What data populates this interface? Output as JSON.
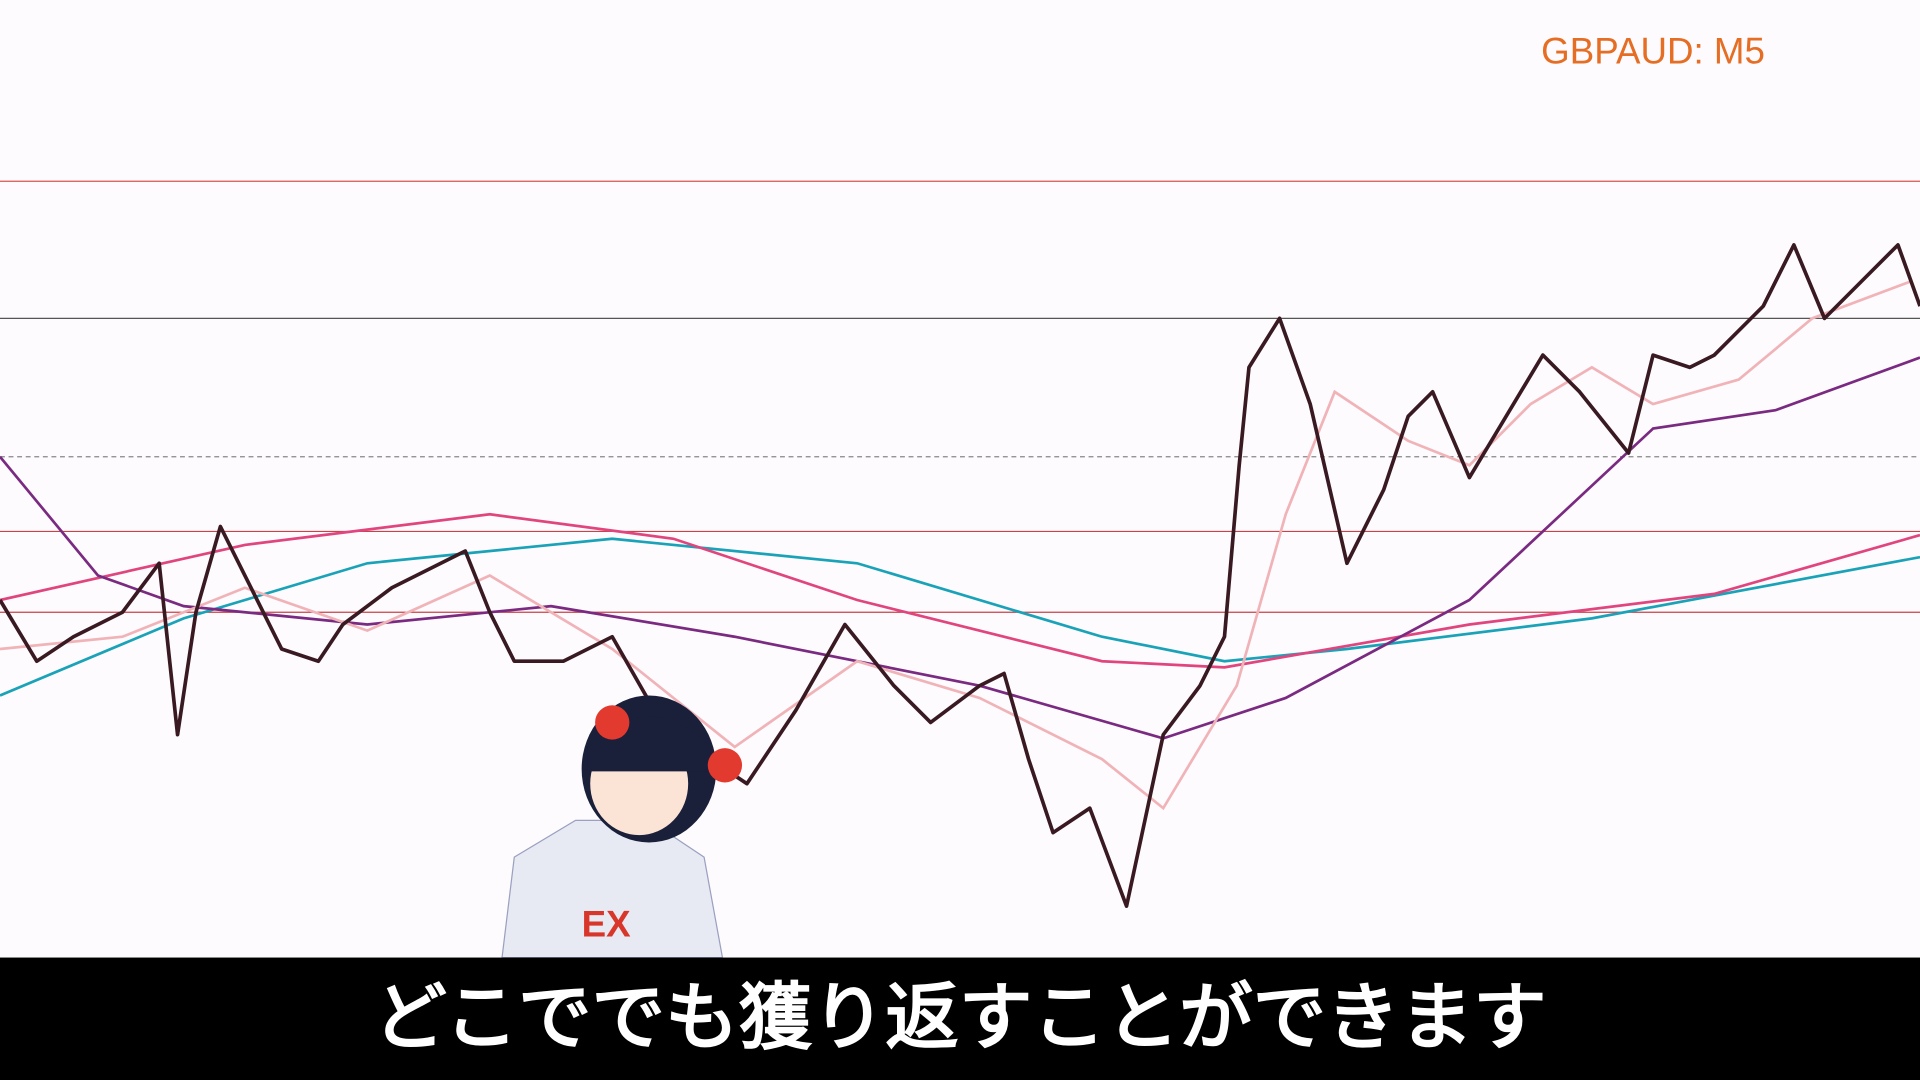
{
  "header": {
    "symbol": "GBPAUD: M5"
  },
  "subtitle": "どこででも獲り返すことができます"
}
